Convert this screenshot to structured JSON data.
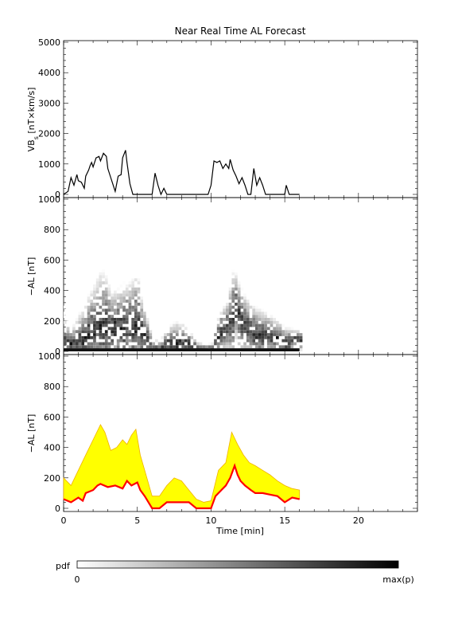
{
  "chart_data": [
    {
      "type": "line",
      "title": "Near Real Time AL Forecast",
      "xlabel": "",
      "ylabel_main": "VB",
      "ylabel_sub": "s",
      "ylabel_rest": " [nT×km/s]",
      "xlim": [
        0,
        24
      ],
      "ylim": [
        0,
        5000
      ],
      "yticks": [
        0,
        1000,
        2000,
        3000,
        4000,
        5000
      ],
      "series": [
        {
          "x": [
            0,
            0.3,
            0.5,
            0.7,
            0.9,
            1.0,
            1.2,
            1.4,
            1.5,
            1.7,
            1.8,
            1.9,
            2.0,
            2.2,
            2.4,
            2.5,
            2.7,
            2.9,
            3.0,
            3.2,
            3.4,
            3.5,
            3.7,
            3.9,
            4.0,
            4.2,
            4.3,
            4.5,
            4.7,
            4.8,
            5.0,
            5.5,
            6.0,
            6.2,
            6.4,
            6.6,
            6.8,
            7.0,
            7.5,
            8.0,
            9.0,
            9.5,
            9.8,
            10.0,
            10.2,
            10.4,
            10.6,
            10.8,
            11.0,
            11.2,
            11.3,
            11.5,
            11.7,
            11.9,
            12.1,
            12.3,
            12.5,
            12.7,
            12.9,
            13.1,
            13.3,
            13.5,
            13.7,
            13.9,
            14.0,
            14.5,
            14.8,
            15.0,
            15.1,
            15.3,
            16.0
          ],
          "y": [
            0,
            100,
            550,
            300,
            650,
            450,
            400,
            200,
            600,
            800,
            950,
            1050,
            900,
            1200,
            1250,
            1100,
            1350,
            1250,
            850,
            550,
            250,
            100,
            600,
            650,
            1200,
            1450,
            1050,
            350,
            0,
            0,
            0,
            0,
            0,
            700,
            300,
            0,
            200,
            0,
            0,
            0,
            0,
            0,
            0,
            300,
            1100,
            1050,
            1100,
            850,
            1000,
            850,
            1150,
            800,
            600,
            350,
            550,
            300,
            0,
            0,
            850,
            300,
            550,
            300,
            0,
            0,
            0,
            0,
            0,
            0,
            300,
            0,
            0
          ]
        }
      ]
    },
    {
      "type": "heatmap",
      "xlabel": "",
      "ylabel": "−AL [nT]",
      "xlim": [
        0,
        24
      ],
      "ylim": [
        0,
        1000
      ],
      "yticks": [
        0,
        200,
        400,
        600,
        800,
        1000
      ],
      "colorbar": {
        "label": "pdf",
        "min_label": "0",
        "max_label": "max(p)"
      }
    },
    {
      "type": "area",
      "xlabel": "Time [min]",
      "ylabel": "−AL [nT]",
      "xlim": [
        0,
        24
      ],
      "ylim": [
        0,
        1000
      ],
      "xticks": [
        0,
        5,
        10,
        15,
        20
      ],
      "yticks": [
        0,
        200,
        400,
        600,
        800,
        1000
      ],
      "series": [
        {
          "color": "#ff0000",
          "x": [
            0,
            0.5,
            1.0,
            1.3,
            1.5,
            2.0,
            2.3,
            2.5,
            3.0,
            3.5,
            4.0,
            4.3,
            4.6,
            5.0,
            5.2,
            5.5,
            6.0,
            6.5,
            7.0,
            7.5,
            8.0,
            8.5,
            9.0,
            9.5,
            10.0,
            10.3,
            10.7,
            11.0,
            11.3,
            11.6,
            11.8,
            12.0,
            12.3,
            12.7,
            13.0,
            13.5,
            14.0,
            14.5,
            15.0,
            15.5,
            16.0
          ],
          "y": [
            60,
            40,
            70,
            50,
            100,
            120,
            150,
            160,
            140,
            150,
            130,
            180,
            150,
            170,
            120,
            80,
            0,
            0,
            40,
            40,
            40,
            40,
            0,
            0,
            0,
            80,
            120,
            150,
            200,
            280,
            220,
            180,
            150,
            120,
            100,
            100,
            90,
            80,
            40,
            70,
            60
          ]
        },
        {
          "color": "#ffff00",
          "x": [
            0,
            0.5,
            1.0,
            1.5,
            2.0,
            2.5,
            2.8,
            3.2,
            3.6,
            4.0,
            4.3,
            4.6,
            4.9,
            5.2,
            5.5,
            6.0,
            6.5,
            7.0,
            7.5,
            8.0,
            8.5,
            9.0,
            9.5,
            10.0,
            10.5,
            11.0,
            11.4,
            11.8,
            12.2,
            12.6,
            13.0,
            13.5,
            14.0,
            14.5,
            15.0,
            15.5,
            16.0
          ],
          "y": [
            200,
            150,
            250,
            350,
            450,
            550,
            500,
            380,
            400,
            450,
            420,
            480,
            520,
            350,
            250,
            80,
            80,
            150,
            200,
            180,
            120,
            60,
            40,
            50,
            250,
            300,
            500,
            420,
            350,
            300,
            280,
            250,
            220,
            180,
            150,
            130,
            120
          ]
        }
      ]
    }
  ]
}
